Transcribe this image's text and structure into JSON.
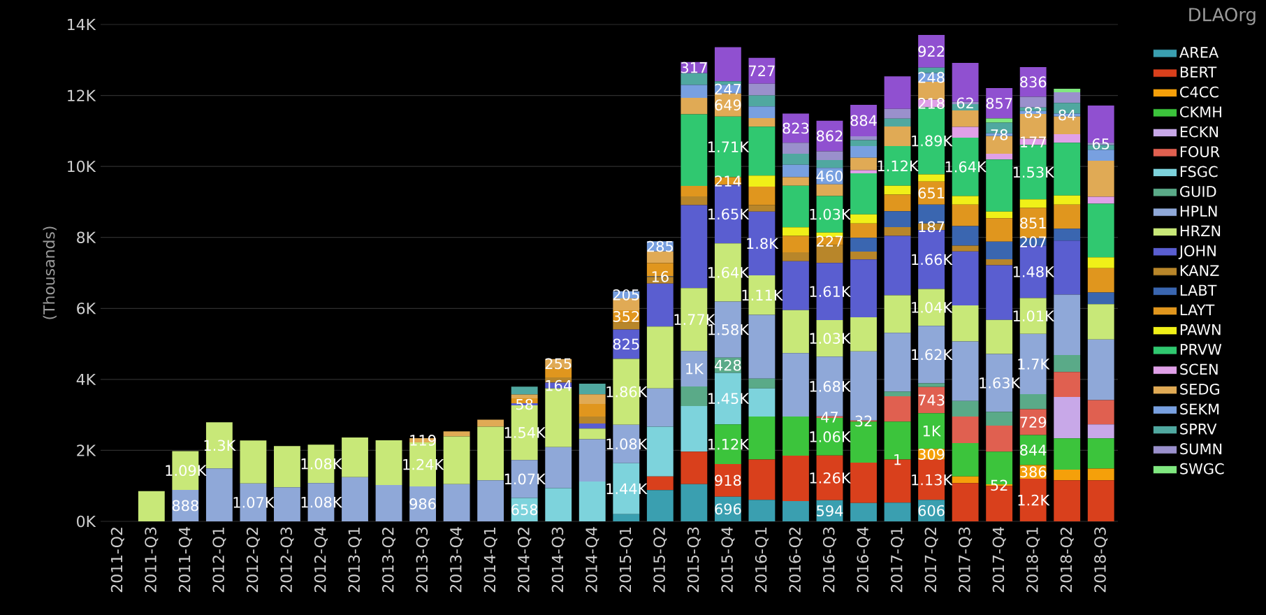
{
  "chart_data": {
    "type": "bar",
    "stacked": true,
    "ylabel": "(Thousands)",
    "legend_title": "DLAOrg",
    "legend": "right",
    "grid": "y",
    "categories": [
      "2011-Q2",
      "2011-Q3",
      "2011-Q4",
      "2012-Q1",
      "2012-Q2",
      "2012-Q3",
      "2012-Q4",
      "2013-Q1",
      "2013-Q2",
      "2013-Q3",
      "2013-Q4",
      "2014-Q1",
      "2014-Q2",
      "2014-Q3",
      "2014-Q4",
      "2015-Q1",
      "2015-Q2",
      "2015-Q3",
      "2015-Q4",
      "2016-Q1",
      "2016-Q2",
      "2016-Q3",
      "2016-Q4",
      "2017-Q1",
      "2017-Q2",
      "2017-Q3",
      "2017-Q4",
      "2018-Q1",
      "2018-Q2",
      "2018-Q3"
    ],
    "ylim": [
      0,
      14000
    ],
    "yticks": [
      {
        "value": 0,
        "label": "0K"
      },
      {
        "value": 2000,
        "label": "2K"
      },
      {
        "value": 4000,
        "label": "4K"
      },
      {
        "value": 6000,
        "label": "6K"
      },
      {
        "value": 8000,
        "label": "8K"
      },
      {
        "value": 10000,
        "label": "10K"
      },
      {
        "value": 12000,
        "label": "12K"
      },
      {
        "value": 14000,
        "label": "14K"
      }
    ],
    "series": [
      {
        "name": "AREA",
        "color": "#3a9fb0",
        "values": [
          null,
          null,
          null,
          null,
          null,
          null,
          null,
          null,
          null,
          null,
          null,
          null,
          null,
          null,
          null,
          200,
          882,
          1047,
          696,
          606,
          573,
          594,
          518,
          529,
          606,
          null,
          null,
          null,
          null,
          null
        ],
        "value_labels": [
          null,
          null,
          null,
          null,
          null,
          null,
          null,
          null,
          null,
          null,
          null,
          null,
          null,
          null,
          null,
          null,
          null,
          null,
          "696",
          null,
          null,
          "594",
          null,
          null,
          "606",
          null,
          null,
          null,
          null,
          null
        ]
      },
      {
        "name": "BERT",
        "color": "#d9401c",
        "values": [
          null,
          null,
          null,
          null,
          null,
          null,
          null,
          null,
          null,
          null,
          null,
          null,
          null,
          null,
          null,
          null,
          385,
          915,
          918,
          1135,
          1278,
          1260,
          1135,
          1212,
          1130,
          1080,
          992,
          1200,
          1157,
          1157
        ],
        "value_labels": [
          null,
          null,
          null,
          null,
          null,
          null,
          null,
          null,
          null,
          null,
          null,
          null,
          null,
          null,
          null,
          null,
          null,
          null,
          "918",
          null,
          null,
          "1.26K",
          null,
          null,
          "1.13K",
          null,
          null,
          "1.2K",
          null,
          null
        ]
      },
      {
        "name": "C4CC",
        "color": "#f5a00a",
        "values": [
          null,
          null,
          null,
          null,
          null,
          null,
          null,
          null,
          null,
          null,
          null,
          null,
          null,
          null,
          null,
          null,
          null,
          null,
          null,
          null,
          null,
          null,
          null,
          1,
          309,
          187,
          52,
          386,
          298,
          331
        ],
        "value_labels": [
          null,
          null,
          null,
          null,
          null,
          null,
          null,
          null,
          null,
          null,
          null,
          null,
          null,
          null,
          null,
          null,
          null,
          null,
          null,
          null,
          null,
          null,
          null,
          "1",
          "309",
          null,
          "52",
          "386",
          null,
          null
        ]
      },
      {
        "name": "CKMH",
        "color": "#3cc43c",
        "values": [
          null,
          null,
          null,
          null,
          null,
          null,
          null,
          null,
          null,
          null,
          null,
          null,
          null,
          null,
          null,
          null,
          null,
          null,
          1120,
          1212,
          1102,
          1060,
          1157,
          1069,
          1000,
          937,
          918,
          844,
          882,
          849
        ],
        "value_labels": [
          null,
          null,
          null,
          null,
          null,
          null,
          null,
          null,
          null,
          null,
          null,
          null,
          null,
          null,
          null,
          null,
          null,
          null,
          "1.12K",
          null,
          null,
          "1.06K",
          null,
          null,
          "1K",
          null,
          null,
          "844",
          null,
          null
        ]
      },
      {
        "name": "ECKN",
        "color": "#c8a8e8",
        "values": [
          null,
          null,
          null,
          null,
          null,
          null,
          null,
          null,
          null,
          null,
          null,
          null,
          null,
          null,
          null,
          null,
          null,
          null,
          null,
          null,
          null,
          null,
          null,
          null,
          null,
          null,
          null,
          null,
          1168,
          397
        ]
      },
      {
        "name": "FOUR",
        "color": "#e06050",
        "values": [
          null,
          null,
          null,
          null,
          null,
          null,
          null,
          null,
          null,
          null,
          null,
          null,
          null,
          null,
          null,
          null,
          null,
          null,
          null,
          null,
          null,
          47,
          32,
          716,
          743,
          749,
          738,
          729,
          705,
          683
        ],
        "value_labels": [
          null,
          null,
          null,
          null,
          null,
          null,
          null,
          null,
          null,
          null,
          null,
          null,
          null,
          null,
          null,
          null,
          null,
          null,
          null,
          null,
          null,
          "47",
          "32",
          null,
          "743",
          null,
          null,
          "729",
          null,
          null
        ]
      },
      {
        "name": "FSGC",
        "color": "#7dd3dc",
        "values": [
          null,
          null,
          null,
          null,
          null,
          null,
          null,
          null,
          null,
          null,
          null,
          null,
          658,
          937,
          1124,
          1440,
          1400,
          1289,
          1450,
          794,
          null,
          null,
          null,
          null,
          null,
          null,
          null,
          null,
          null,
          null
        ],
        "value_labels": [
          null,
          null,
          null,
          null,
          null,
          null,
          null,
          null,
          null,
          null,
          null,
          null,
          "658",
          null,
          null,
          "1.44K",
          null,
          null,
          "1.45K",
          null,
          null,
          null,
          null,
          null,
          null,
          null,
          null,
          null,
          null,
          null
        ]
      },
      {
        "name": "GUID",
        "color": "#5aaa88",
        "values": [
          null,
          null,
          null,
          null,
          null,
          null,
          null,
          null,
          null,
          null,
          null,
          null,
          null,
          null,
          null,
          null,
          null,
          551,
          428,
          275,
          null,
          null,
          null,
          133,
          100,
          441,
          386,
          423,
          474,
          null
        ],
        "value_labels": [
          null,
          null,
          null,
          null,
          null,
          null,
          null,
          null,
          null,
          null,
          null,
          null,
          null,
          null,
          null,
          null,
          null,
          null,
          "428",
          null,
          null,
          null,
          null,
          null,
          null,
          null,
          null,
          null,
          null,
          null
        ]
      },
      {
        "name": "HPLN",
        "color": "#8fa8d8",
        "values": [
          null,
          null,
          888,
          1490,
          1070,
          960,
          1080,
          1245,
          1025,
          986,
          1047,
          1157,
          1070,
          1157,
          1190,
          1080,
          1080,
          1000,
          1580,
          1797,
          1786,
          1680,
          1950,
          1653,
          1620,
          1675,
          1630,
          1700,
          1708,
          1708
        ],
        "value_labels": [
          null,
          null,
          "888",
          null,
          "1.07K",
          null,
          "1.08K",
          null,
          null,
          "986",
          null,
          null,
          "1.07K",
          null,
          null,
          "1.08K",
          null,
          "1K",
          "1.58K",
          null,
          null,
          "1.68K",
          null,
          null,
          "1.62K",
          null,
          "1.63K",
          "1.7K",
          null,
          null
        ]
      },
      {
        "name": "HRZN",
        "color": "#c8e878",
        "values": [
          null,
          850,
          1090,
          1300,
          1210,
          1160,
          1080,
          1120,
          1260,
          1240,
          1344,
          1510,
          1540,
          1650,
          298,
          1860,
          1741,
          1770,
          1640,
          1110,
          1212,
          1030,
          958,
          1058,
          1040,
          1014,
          959,
          1010,
          null,
          992
        ],
        "value_labels": [
          null,
          null,
          "1.09K",
          "1.3K",
          null,
          null,
          "1.08K",
          null,
          null,
          "1.24K",
          null,
          null,
          "1.54K",
          null,
          null,
          "1.86K",
          null,
          "1.77K",
          "1.64K",
          "1.11K",
          null,
          "1.03K",
          null,
          null,
          "1.04K",
          null,
          null,
          "1.01K",
          null,
          null
        ]
      },
      {
        "name": "JOHN",
        "color": "#5a5ed0",
        "values": [
          null,
          null,
          null,
          null,
          null,
          null,
          null,
          null,
          null,
          null,
          null,
          null,
          58,
          164,
          143,
          825,
          1212,
          2340,
          1650,
          1800,
          1377,
          1610,
          1631,
          1675,
          1660,
          1521,
          1543,
          1480,
          1521,
          null
        ],
        "value_labels": [
          null,
          null,
          null,
          null,
          null,
          null,
          null,
          null,
          null,
          null,
          null,
          null,
          "58",
          "164",
          null,
          "825",
          null,
          null,
          "1.65K",
          "1.8K",
          null,
          "1.61K",
          null,
          null,
          "1.66K",
          null,
          null,
          "1.48K",
          null,
          null
        ]
      },
      {
        "name": "KANZ",
        "color": "#b8862a",
        "values": [
          null,
          null,
          null,
          null,
          null,
          null,
          null,
          null,
          null,
          null,
          null,
          null,
          null,
          150,
          198,
          190,
          188,
          242,
          null,
          187,
          253,
          500,
          220,
          242,
          187,
          165,
          165,
          null,
          null,
          null
        ],
        "value_labels": [
          null,
          null,
          null,
          null,
          null,
          null,
          null,
          null,
          null,
          null,
          null,
          null,
          null,
          null,
          null,
          null,
          null,
          null,
          null,
          null,
          null,
          null,
          null,
          null,
          "187",
          null,
          null,
          null,
          null,
          null
        ]
      },
      {
        "name": "LABT",
        "color": "#3a66b0",
        "values": [
          null,
          null,
          null,
          null,
          null,
          null,
          null,
          null,
          null,
          null,
          null,
          null,
          null,
          null,
          null,
          null,
          16,
          null,
          null,
          null,
          null,
          null,
          386,
          452,
          530,
          551,
          496,
          207,
          331,
          331
        ],
        "value_labels": [
          null,
          null,
          null,
          null,
          null,
          null,
          null,
          null,
          null,
          null,
          null,
          null,
          null,
          null,
          null,
          null,
          "16",
          null,
          null,
          null,
          null,
          null,
          null,
          null,
          null,
          null,
          null,
          "207",
          null,
          null
        ]
      },
      {
        "name": "LAYT",
        "color": "#e0961e",
        "values": [
          null,
          null,
          null,
          null,
          null,
          null,
          null,
          null,
          null,
          null,
          null,
          null,
          140,
          258,
          353,
          352,
          370,
          298,
          214,
          518,
          463,
          227,
          408,
          463,
          651,
          606,
          661,
          851,
          683,
          683
        ],
        "value_labels": [
          null,
          null,
          null,
          null,
          null,
          null,
          null,
          null,
          null,
          null,
          null,
          null,
          null,
          null,
          null,
          "352",
          null,
          null,
          "214",
          null,
          null,
          "227",
          null,
          null,
          "651",
          null,
          null,
          "851",
          null,
          null
        ]
      },
      {
        "name": "PAWN",
        "color": "#f0f018",
        "values": [
          null,
          null,
          null,
          null,
          null,
          null,
          null,
          null,
          null,
          null,
          null,
          null,
          null,
          null,
          null,
          null,
          null,
          null,
          null,
          309,
          242,
          130,
          253,
          253,
          200,
          242,
          187,
          242,
          253,
          309
        ]
      },
      {
        "name": "PRVW",
        "color": "#30c870",
        "values": [
          null,
          null,
          null,
          null,
          null,
          null,
          null,
          null,
          null,
          null,
          null,
          null,
          null,
          null,
          null,
          null,
          null,
          2017,
          1710,
          1378,
          1168,
          1030,
          1157,
          1120,
          1890,
          1640,
          1466,
          1530,
          1488,
          1510
        ],
        "value_labels": [
          null,
          null,
          null,
          null,
          null,
          null,
          null,
          null,
          null,
          null,
          null,
          null,
          null,
          null,
          null,
          null,
          null,
          null,
          "1.71K",
          null,
          null,
          "1.03K",
          null,
          "1.12K",
          "1.89K",
          "1.64K",
          null,
          "1.53K",
          null,
          null
        ]
      },
      {
        "name": "SCEN",
        "color": "#e0a0e8",
        "values": [
          null,
          null,
          null,
          null,
          null,
          null,
          null,
          null,
          null,
          null,
          null,
          null,
          null,
          null,
          null,
          null,
          null,
          null,
          null,
          null,
          null,
          null,
          88,
          null,
          218,
          309,
          165,
          177,
          242,
          198
        ],
        "value_labels": [
          null,
          null,
          null,
          null,
          null,
          null,
          null,
          null,
          null,
          null,
          null,
          null,
          null,
          null,
          null,
          null,
          null,
          null,
          null,
          null,
          null,
          null,
          null,
          null,
          "218",
          null,
          null,
          "177",
          null,
          null
        ]
      },
      {
        "name": "SEDG",
        "color": "#e0aa55",
        "values": [
          null,
          null,
          null,
          null,
          null,
          null,
          null,
          null,
          null,
          119,
          143,
          200,
          110,
          255,
          275,
          333,
          330,
          463,
          649,
          242,
          242,
          330,
          353,
          551,
          500,
          463,
          496,
          700,
          496,
          1014
        ],
        "value_labels": [
          null,
          null,
          null,
          null,
          null,
          null,
          null,
          null,
          null,
          "119",
          null,
          null,
          null,
          "255",
          null,
          null,
          null,
          null,
          "649",
          null,
          null,
          null,
          null,
          null,
          null,
          null,
          null,
          null,
          null,
          null
        ]
      },
      {
        "name": "SEKM",
        "color": "#78a0e0",
        "values": [
          null,
          null,
          null,
          null,
          null,
          null,
          null,
          null,
          null,
          null,
          null,
          null,
          null,
          null,
          null,
          205,
          285,
          364,
          247,
          330,
          353,
          460,
          330,
          null,
          248,
          null,
          78,
          83,
          84,
          309
        ],
        "value_labels": [
          null,
          null,
          null,
          null,
          null,
          null,
          null,
          null,
          null,
          null,
          null,
          null,
          null,
          null,
          null,
          "205",
          "285",
          null,
          "247",
          null,
          null,
          "460",
          null,
          null,
          "248",
          null,
          "78",
          "83",
          "84",
          null
        ]
      },
      {
        "name": "SPRV",
        "color": "#50a8a0",
        "values": [
          null,
          null,
          null,
          null,
          null,
          null,
          null,
          null,
          null,
          null,
          null,
          null,
          220,
          null,
          298,
          null,
          null,
          330,
          100,
          308,
          308,
          220,
          165,
          220,
          150,
          176,
          300,
          100,
          300,
          132
        ]
      },
      {
        "name": "SUMN",
        "color": "#9a90cc",
        "values": [
          null,
          null,
          null,
          null,
          null,
          null,
          null,
          null,
          null,
          null,
          null,
          null,
          null,
          null,
          null,
          null,
          null,
          null,
          null,
          330,
          308,
          250,
          110,
          275,
          null,
          62,
          null,
          300,
          300,
          65
        ],
        "value_labels": [
          null,
          null,
          null,
          null,
          null,
          null,
          null,
          null,
          null,
          null,
          null,
          null,
          null,
          null,
          null,
          null,
          null,
          null,
          null,
          null,
          null,
          null,
          null,
          null,
          null,
          "62",
          null,
          null,
          null,
          "65"
        ]
      },
      {
        "name": "SWGC",
        "color": "#80e880",
        "values": [
          null,
          null,
          null,
          null,
          null,
          null,
          null,
          null,
          null,
          null,
          null,
          null,
          null,
          null,
          null,
          null,
          null,
          null,
          null,
          null,
          null,
          null,
          null,
          null,
          null,
          null,
          118,
          null,
          100,
          null
        ]
      },
      {
        "color": "#9050d0",
        "values": [
          null,
          null,
          null,
          null,
          null,
          null,
          null,
          null,
          null,
          null,
          null,
          null,
          null,
          null,
          null,
          null,
          null,
          317,
          956,
          727,
          823,
          862,
          884,
          915,
          922,
          1100,
          857,
          836,
          null,
          1047
        ],
        "value_labels": [
          null,
          null,
          null,
          null,
          null,
          null,
          null,
          null,
          null,
          null,
          null,
          null,
          null,
          null,
          null,
          null,
          null,
          "317",
          null,
          "727",
          "823",
          "862",
          "884",
          null,
          "922",
          null,
          "857",
          "836",
          null,
          null
        ]
      }
    ]
  }
}
